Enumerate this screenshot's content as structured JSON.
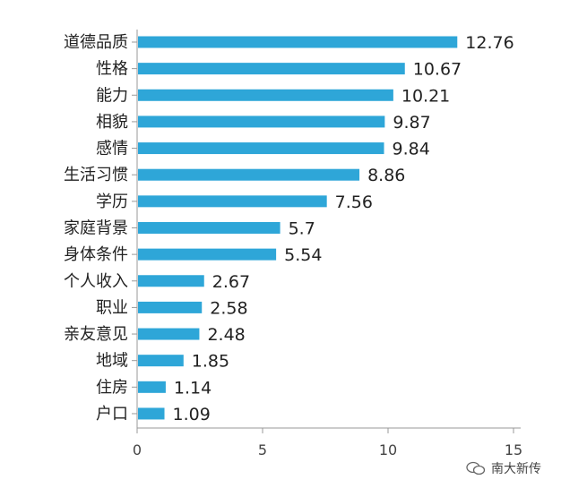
{
  "chart_data": {
    "type": "bar",
    "orientation": "horizontal",
    "categories": [
      "道德品质",
      "性格",
      "能力",
      "相貌",
      "感情",
      "生活习惯",
      "学历",
      "家庭背景",
      "身体条件",
      "个人收入",
      "职业",
      "亲友意见",
      "地域",
      "住房",
      "户口"
    ],
    "values": [
      12.76,
      10.67,
      10.21,
      9.87,
      9.84,
      8.86,
      7.56,
      5.7,
      5.54,
      2.67,
      2.58,
      2.48,
      1.85,
      1.14,
      1.09
    ],
    "value_labels": [
      "12.76",
      "10.67",
      "10.21",
      "9.87",
      "9.84",
      "8.86",
      "7.56",
      "5.7",
      "5.54",
      "2.67",
      "2.58",
      "2.48",
      "1.85",
      "1.14",
      "1.09"
    ],
    "xlim": [
      0,
      15
    ],
    "xticks": [
      0,
      5,
      10,
      15
    ],
    "xtick_labels": [
      "0",
      "5",
      "10",
      "15"
    ],
    "title": "",
    "xlabel": "",
    "ylabel": "",
    "grid": false,
    "bar_color": "#2ea6d8"
  },
  "watermark": {
    "icon": "wechat-icon",
    "text": "南大新传"
  }
}
